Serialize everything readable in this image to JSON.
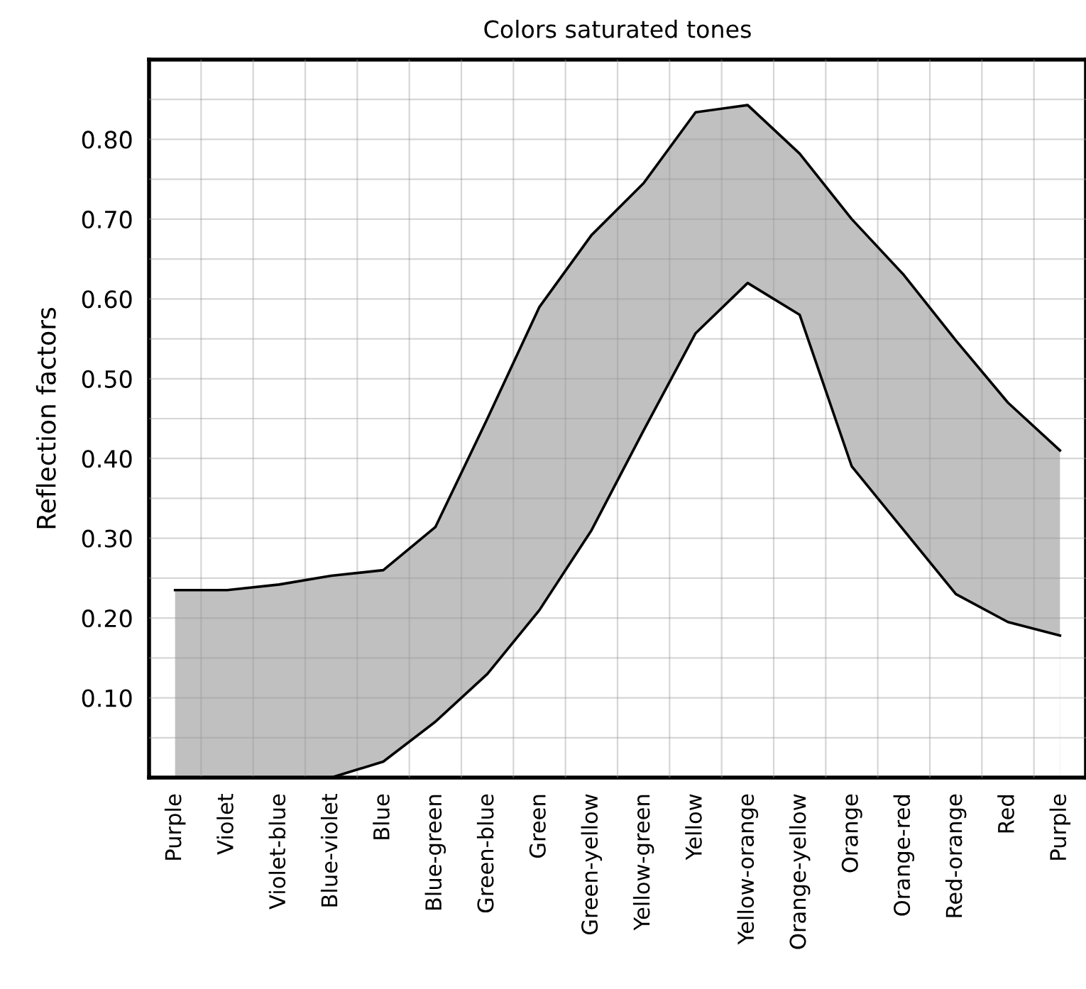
{
  "chart_data": {
    "type": "area",
    "title": "Colors saturated tones",
    "ylabel": "Reflection factors",
    "categories": [
      "Purple",
      "Violet",
      "Violet-blue",
      "Blue-violet",
      "Blue",
      "Blue-green",
      "Green-blue",
      "Green",
      "Green-yellow",
      "Yellow-green",
      "Yellow",
      "Yellow-orange",
      "Orange-yellow",
      "Orange",
      "Orange-red",
      "Red-orange",
      "Red",
      "Purple"
    ],
    "series": [
      {
        "color": "#c0c0c0",
        "values": [
          0.235,
          0.235,
          0.242,
          0.253,
          0.26,
          0.314,
          0.45,
          0.59,
          0.68,
          0.745,
          0.834,
          0.843,
          0.782,
          0.7,
          0.63,
          0.548,
          0.47,
          0.41
        ]
      },
      {
        "color": "#ffffff",
        "values": [
          0,
          0,
          0,
          0,
          0.02,
          0.07,
          0.13,
          0.21,
          0.31,
          0.435,
          0.557,
          0.62,
          0.58,
          0.39,
          0.31,
          0.23,
          0.195,
          0.178
        ]
      }
    ],
    "ylim": [
      0,
      0.9
    ],
    "yticks": [
      {
        "value": 0.05,
        "label": null
      },
      {
        "value": 0.1,
        "label": "0.10"
      },
      {
        "value": 0.15,
        "label": null
      },
      {
        "value": 0.2,
        "label": "0.20"
      },
      {
        "value": 0.25,
        "label": null
      },
      {
        "value": 0.3,
        "label": "0.30"
      },
      {
        "value": 0.35,
        "label": null
      },
      {
        "value": 0.4,
        "label": "0.40"
      },
      {
        "value": 0.45,
        "label": null
      },
      {
        "value": 0.5,
        "label": "0.50"
      },
      {
        "value": 0.55,
        "label": null
      },
      {
        "value": 0.6,
        "label": "0.60"
      },
      {
        "value": 0.65,
        "label": null
      },
      {
        "value": 0.7,
        "label": "0.70"
      },
      {
        "value": 0.75,
        "label": null
      },
      {
        "value": 0.8,
        "label": "0.80"
      },
      {
        "value": 0.85,
        "label": null
      }
    ],
    "grid": true
  }
}
